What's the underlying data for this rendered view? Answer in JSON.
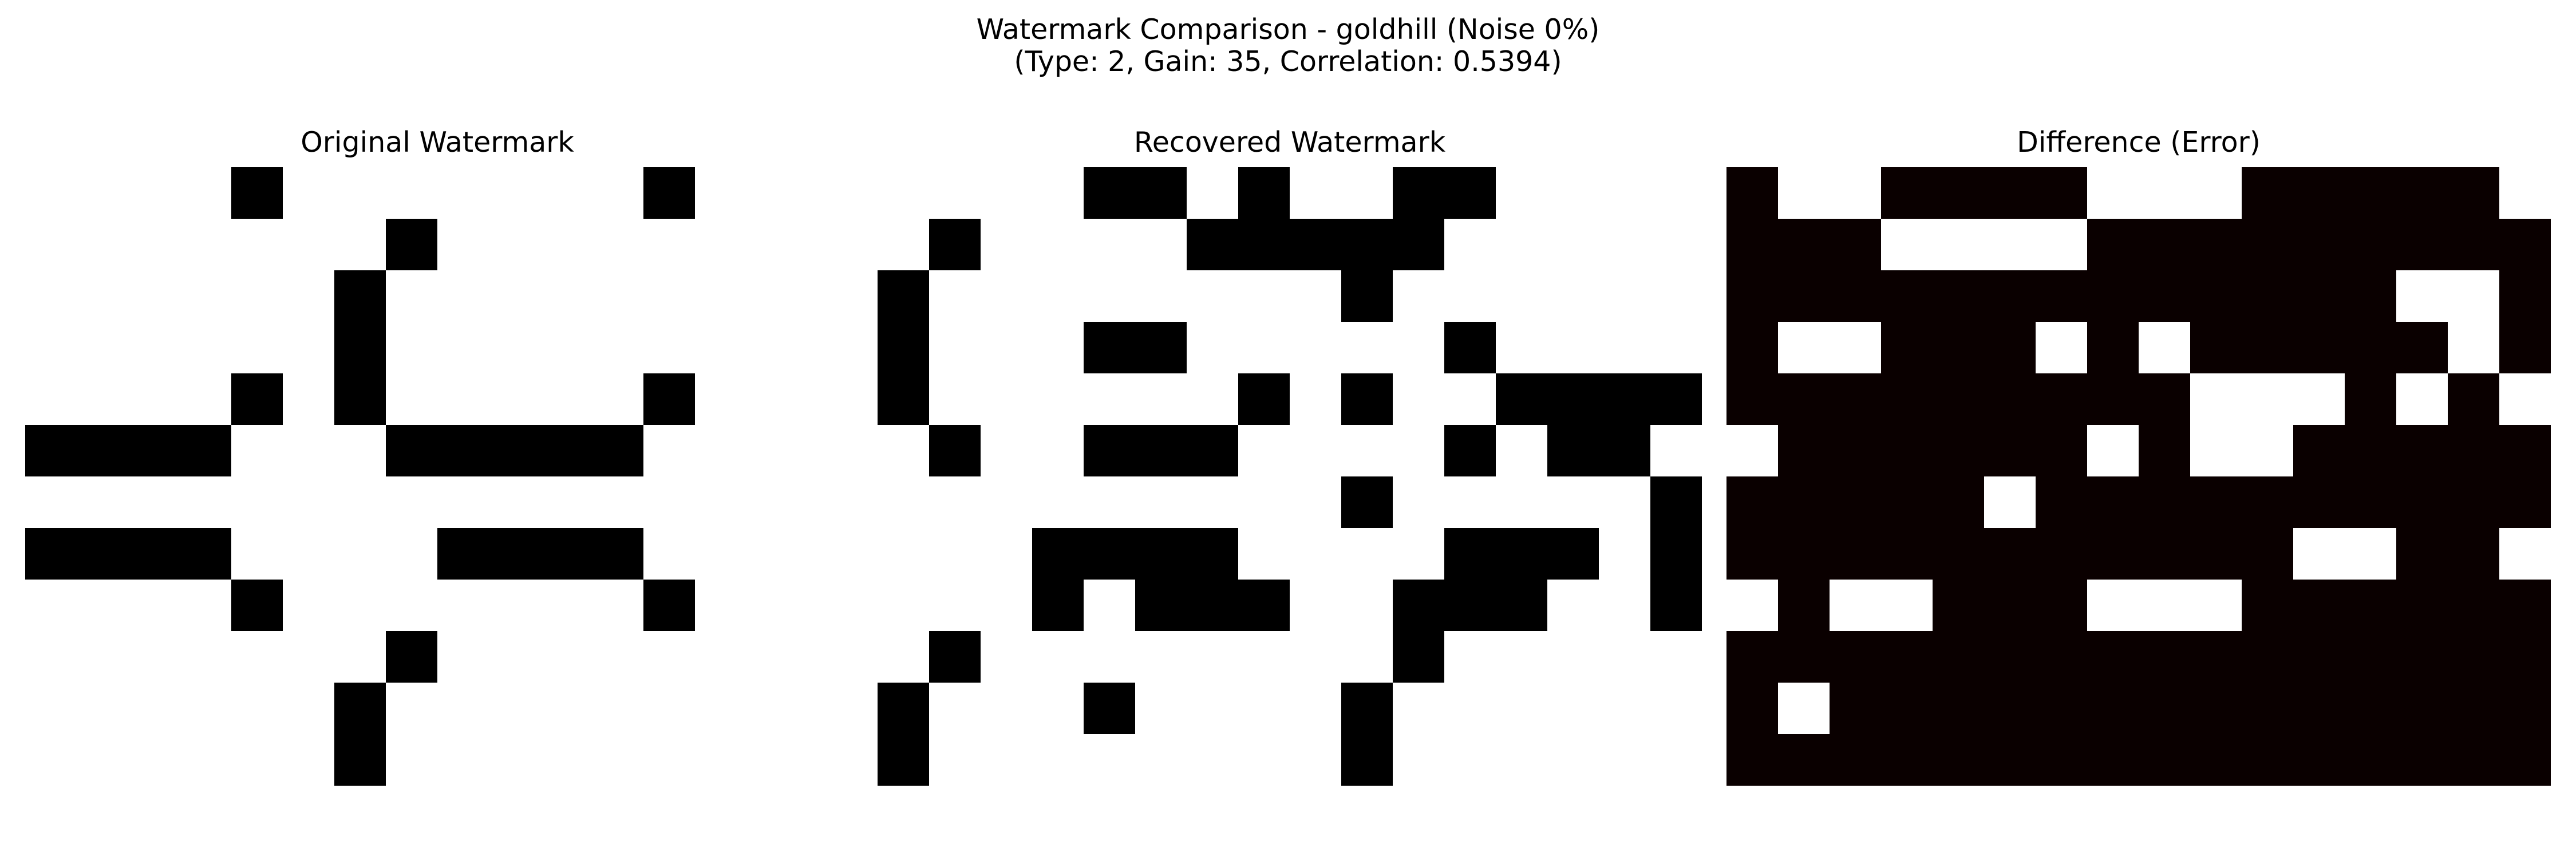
{
  "chart_data": {
    "suptitle_line1": "Watermark Comparison - goldhill (Noise 0%)",
    "suptitle_line2": "(Type: 2, Gain: 35, Correlation: 0.5394)",
    "panels": [
      {
        "type": "heatmap",
        "title": "Original Watermark",
        "colormap": "gray",
        "rows": 12,
        "cols": 16,
        "values": [
          [
            1,
            1,
            1,
            1,
            0,
            1,
            1,
            1,
            1,
            1,
            1,
            1,
            0,
            1,
            1,
            1
          ],
          [
            1,
            1,
            1,
            1,
            1,
            1,
            1,
            0,
            1,
            1,
            1,
            1,
            1,
            1,
            1,
            1
          ],
          [
            1,
            1,
            1,
            1,
            1,
            1,
            0,
            1,
            1,
            1,
            1,
            1,
            1,
            1,
            1,
            1
          ],
          [
            1,
            1,
            1,
            1,
            1,
            1,
            0,
            1,
            1,
            1,
            1,
            1,
            1,
            1,
            1,
            1
          ],
          [
            1,
            1,
            1,
            1,
            0,
            1,
            0,
            1,
            1,
            1,
            1,
            1,
            0,
            1,
            1,
            1
          ],
          [
            0,
            0,
            0,
            0,
            1,
            1,
            1,
            0,
            0,
            0,
            0,
            0,
            1,
            1,
            1,
            1
          ],
          [
            1,
            1,
            1,
            1,
            1,
            1,
            1,
            1,
            1,
            1,
            1,
            1,
            1,
            1,
            1,
            1
          ],
          [
            0,
            0,
            0,
            0,
            1,
            1,
            1,
            1,
            0,
            0,
            0,
            0,
            1,
            1,
            1,
            1
          ],
          [
            1,
            1,
            1,
            1,
            0,
            1,
            1,
            1,
            1,
            1,
            1,
            1,
            0,
            1,
            1,
            1
          ],
          [
            1,
            1,
            1,
            1,
            1,
            1,
            1,
            0,
            1,
            1,
            1,
            1,
            1,
            1,
            1,
            1
          ],
          [
            1,
            1,
            1,
            1,
            1,
            1,
            0,
            1,
            1,
            1,
            1,
            1,
            1,
            1,
            1,
            1
          ],
          [
            1,
            1,
            1,
            1,
            1,
            1,
            0,
            1,
            1,
            1,
            1,
            1,
            1,
            1,
            1,
            1
          ]
        ]
      },
      {
        "type": "heatmap",
        "title": "Recovered Watermark",
        "colormap": "gray",
        "rows": 12,
        "cols": 16,
        "values": [
          [
            1,
            1,
            1,
            1,
            0,
            0,
            1,
            0,
            1,
            1,
            0,
            0,
            1,
            1,
            1,
            1
          ],
          [
            1,
            0,
            1,
            1,
            1,
            1,
            0,
            0,
            0,
            0,
            0,
            1,
            1,
            1,
            1,
            1
          ],
          [
            0,
            1,
            1,
            1,
            1,
            1,
            1,
            1,
            1,
            0,
            1,
            1,
            1,
            1,
            1,
            1
          ],
          [
            0,
            1,
            1,
            1,
            0,
            0,
            1,
            1,
            1,
            1,
            1,
            0,
            1,
            1,
            1,
            1
          ],
          [
            0,
            1,
            1,
            1,
            1,
            1,
            1,
            0,
            1,
            0,
            1,
            1,
            0,
            0,
            0,
            0
          ],
          [
            1,
            0,
            1,
            1,
            0,
            0,
            0,
            1,
            1,
            1,
            1,
            0,
            1,
            0,
            0,
            1
          ],
          [
            1,
            1,
            1,
            1,
            1,
            1,
            1,
            1,
            1,
            0,
            1,
            1,
            1,
            1,
            1,
            0
          ],
          [
            1,
            1,
            1,
            0,
            0,
            0,
            0,
            1,
            1,
            1,
            1,
            0,
            0,
            0,
            1,
            0
          ],
          [
            1,
            1,
            1,
            0,
            1,
            0,
            0,
            0,
            1,
            1,
            0,
            0,
            0,
            1,
            1,
            0
          ],
          [
            1,
            0,
            1,
            1,
            1,
            1,
            1,
            1,
            1,
            1,
            0,
            1,
            1,
            1,
            1,
            1
          ],
          [
            0,
            1,
            1,
            1,
            0,
            1,
            1,
            1,
            1,
            0,
            1,
            1,
            1,
            1,
            1,
            1
          ],
          [
            0,
            1,
            1,
            1,
            1,
            1,
            1,
            1,
            1,
            0,
            1,
            1,
            1,
            1,
            1,
            1
          ]
        ]
      },
      {
        "type": "heatmap",
        "title": "Difference (Error)",
        "colormap": "hot",
        "dark_color": "#0a0000",
        "light_color": "#ffffff",
        "rows": 12,
        "cols": 16,
        "values": [
          [
            0,
            1,
            1,
            0,
            0,
            0,
            0,
            1,
            1,
            1,
            0,
            0,
            0,
            0,
            0,
            1
          ],
          [
            0,
            0,
            0,
            1,
            1,
            1,
            1,
            0,
            0,
            0,
            0,
            0,
            0,
            0,
            0,
            0
          ],
          [
            0,
            0,
            0,
            0,
            0,
            0,
            0,
            0,
            0,
            0,
            0,
            0,
            0,
            1,
            1,
            0
          ],
          [
            0,
            1,
            1,
            0,
            0,
            0,
            1,
            0,
            1,
            0,
            0,
            0,
            0,
            0,
            1,
            0
          ],
          [
            0,
            0,
            0,
            0,
            0,
            0,
            0,
            0,
            0,
            1,
            1,
            1,
            0,
            1,
            0,
            1
          ],
          [
            1,
            0,
            0,
            0,
            0,
            0,
            0,
            1,
            0,
            1,
            1,
            0,
            0,
            0,
            0,
            0
          ],
          [
            0,
            0,
            0,
            0,
            0,
            1,
            0,
            0,
            0,
            0,
            0,
            0,
            0,
            0,
            0,
            0
          ],
          [
            0,
            0,
            0,
            0,
            0,
            0,
            0,
            0,
            0,
            0,
            0,
            1,
            1,
            0,
            0,
            1
          ],
          [
            1,
            0,
            1,
            1,
            0,
            0,
            0,
            1,
            1,
            1,
            0,
            0,
            0,
            0,
            0,
            0
          ],
          [
            0,
            0,
            0,
            0,
            0,
            0,
            0,
            0,
            0,
            0,
            0,
            0,
            0,
            0,
            0,
            0
          ],
          [
            0,
            1,
            0,
            0,
            0,
            0,
            0,
            0,
            0,
            0,
            0,
            0,
            0,
            0,
            0,
            0
          ],
          [
            0,
            0,
            0,
            0,
            0,
            0,
            0,
            0,
            0,
            0,
            0,
            0,
            0,
            0,
            0,
            0
          ]
        ]
      }
    ]
  }
}
